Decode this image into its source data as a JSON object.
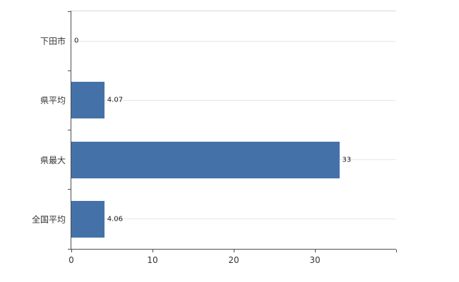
{
  "chart_data": {
    "type": "bar",
    "orientation": "horizontal",
    "title": "",
    "xlabel": "",
    "ylabel": "",
    "categories": [
      "下田市",
      "県平均",
      "県最大",
      "全国平均"
    ],
    "values": [
      0,
      4.07,
      33,
      4.06
    ],
    "value_labels": [
      "0",
      "4.07",
      "33",
      "4.06"
    ],
    "x_ticks": [
      0,
      10,
      20,
      30
    ],
    "xlim": [
      0,
      40
    ],
    "grid": true,
    "legend": "none",
    "bar_color": "#4472a8"
  },
  "colors": {
    "bar": "#4472a8",
    "axis": "#4d4d4d",
    "gridline": "#e6e6e6",
    "text": "#333333",
    "background": "#ffffff"
  }
}
